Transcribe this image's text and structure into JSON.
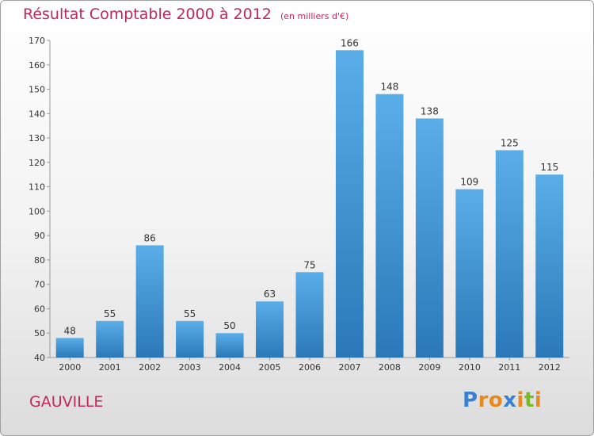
{
  "chart_data": {
    "type": "bar",
    "title": "Résultat Comptable 2000 à 2012",
    "subtitle": "(en milliers d'€)",
    "categories": [
      "2000",
      "2001",
      "2002",
      "2003",
      "2004",
      "2005",
      "2006",
      "2007",
      "2008",
      "2009",
      "2010",
      "2011",
      "2012"
    ],
    "values": [
      48,
      55,
      86,
      55,
      50,
      63,
      75,
      166,
      148,
      138,
      109,
      125,
      115
    ],
    "ylim": [
      40,
      170
    ],
    "yticks": [
      40,
      50,
      60,
      70,
      80,
      90,
      100,
      110,
      120,
      130,
      140,
      150,
      160,
      170
    ],
    "xlabel": "",
    "ylabel": "",
    "grid": false,
    "bar_color": "#3a8fd4"
  },
  "commune": "GAUVILLE",
  "brand": {
    "letters": [
      "P",
      "r",
      "o",
      "x",
      "i",
      "t",
      "i"
    ],
    "colors": [
      "#3a7fd0",
      "#e8891e",
      "#e8891e",
      "#3a7fd0",
      "#e8891e",
      "#7ab828",
      "#e8891e"
    ]
  }
}
